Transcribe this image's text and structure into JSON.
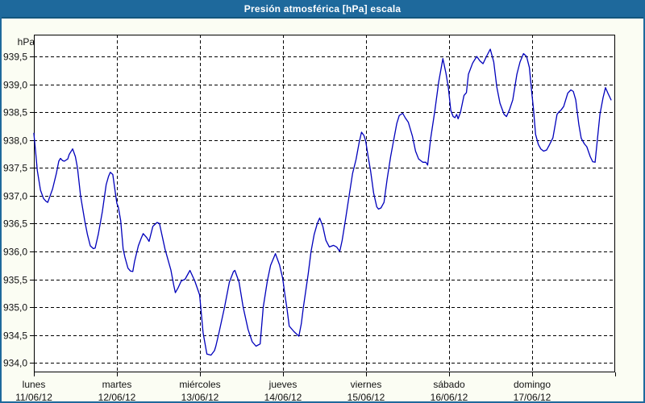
{
  "window": {
    "title": "Presión atmosférica [hPa] escala"
  },
  "colors": {
    "titlebar_blue": "#1e699c",
    "frame_blue": "#1e699c",
    "page_background": "#fbfdf3",
    "plot_background": "#ffffff",
    "grid_color": "#000000",
    "line_color": "#0000bb",
    "label_color": "#111111"
  },
  "chart_data": {
    "type": "line",
    "title": "Presión atmosférica [hPa] escala",
    "xlabel": "",
    "ylabel": "hPa",
    "grid": "dashed",
    "legend": "none",
    "xlim_hours": [
      0,
      168
    ],
    "ylim": [
      933.83,
      939.89
    ],
    "y_ticks": [
      {
        "value": 939.5,
        "label": "939,5"
      },
      {
        "value": 939.0,
        "label": "939,0"
      },
      {
        "value": 938.5,
        "label": "938,5"
      },
      {
        "value": 938.0,
        "label": "938,0"
      },
      {
        "value": 937.5,
        "label": "937,5"
      },
      {
        "value": 937.0,
        "label": "937,0"
      },
      {
        "value": 936.5,
        "label": "936,5"
      },
      {
        "value": 936.0,
        "label": "936,0"
      },
      {
        "value": 935.5,
        "label": "935,5"
      },
      {
        "value": 935.0,
        "label": "935,0"
      },
      {
        "value": 934.5,
        "label": "934,5"
      },
      {
        "value": 934.0,
        "label": "934,0"
      }
    ],
    "x_days": [
      {
        "name": "lunes",
        "date": "11/06/12",
        "start_hour": 0
      },
      {
        "name": "martes",
        "date": "12/06/12",
        "start_hour": 24
      },
      {
        "name": "miércoles",
        "date": "13/06/12",
        "start_hour": 48
      },
      {
        "name": "jueves",
        "date": "14/06/12",
        "start_hour": 72
      },
      {
        "name": "viernes",
        "date": "15/06/12",
        "start_hour": 96
      },
      {
        "name": "sábado",
        "date": "16/06/12",
        "start_hour": 120
      },
      {
        "name": "domingo",
        "date": "17/06/12",
        "start_hour": 144
      }
    ],
    "series": [
      {
        "name": "Presión atmosférica [hPa]",
        "color": "#0000bb",
        "points": [
          [
            0,
            938.12
          ],
          [
            0.5,
            937.8
          ],
          [
            1,
            937.45
          ],
          [
            1.9,
            937.1
          ],
          [
            2.8,
            936.95
          ],
          [
            3.5,
            936.9
          ],
          [
            4,
            936.88
          ],
          [
            4.7,
            937.0
          ],
          [
            5.4,
            937.12
          ],
          [
            6.5,
            937.4
          ],
          [
            7.2,
            937.62
          ],
          [
            7.7,
            937.67
          ],
          [
            8.3,
            937.63
          ],
          [
            8.8,
            937.62
          ],
          [
            9.8,
            937.66
          ],
          [
            10.2,
            937.74
          ],
          [
            11.2,
            937.84
          ],
          [
            12,
            937.7
          ],
          [
            12.6,
            937.5
          ],
          [
            13.5,
            937.0
          ],
          [
            14.7,
            936.55
          ],
          [
            15.5,
            936.3
          ],
          [
            16.3,
            936.1
          ],
          [
            17.2,
            936.05
          ],
          [
            17.7,
            936.06
          ],
          [
            18.6,
            936.3
          ],
          [
            19.8,
            936.72
          ],
          [
            20.9,
            937.2
          ],
          [
            21.6,
            937.35
          ],
          [
            22.1,
            937.42
          ],
          [
            22.8,
            937.38
          ],
          [
            23.4,
            937.12
          ],
          [
            24,
            936.86
          ],
          [
            24.4,
            936.8
          ],
          [
            25.1,
            936.55
          ],
          [
            25.8,
            936.05
          ],
          [
            26.3,
            935.9
          ],
          [
            27.2,
            935.7
          ],
          [
            27.9,
            935.65
          ],
          [
            28.6,
            935.64
          ],
          [
            29.1,
            935.82
          ],
          [
            30.2,
            936.1
          ],
          [
            31.1,
            936.25
          ],
          [
            31.6,
            936.32
          ],
          [
            32.6,
            936.25
          ],
          [
            33.3,
            936.18
          ],
          [
            34.4,
            936.45
          ],
          [
            35.6,
            936.52
          ],
          [
            36.3,
            936.5
          ],
          [
            37.9,
            936.04
          ],
          [
            39.6,
            935.67
          ],
          [
            40.4,
            935.4
          ],
          [
            40.9,
            935.26
          ],
          [
            41.7,
            935.35
          ],
          [
            42.6,
            935.47
          ],
          [
            43.7,
            935.5
          ],
          [
            45.1,
            935.66
          ],
          [
            46.5,
            935.47
          ],
          [
            47.9,
            935.22
          ],
          [
            48.9,
            934.54
          ],
          [
            50,
            934.16
          ],
          [
            51.2,
            934.14
          ],
          [
            52.2,
            934.22
          ],
          [
            52.6,
            934.3
          ],
          [
            53.5,
            934.54
          ],
          [
            55.1,
            935.0
          ],
          [
            56.5,
            935.45
          ],
          [
            57.7,
            935.64
          ],
          [
            58.1,
            935.66
          ],
          [
            59.3,
            935.45
          ],
          [
            60.5,
            935.0
          ],
          [
            61.9,
            934.6
          ],
          [
            63.1,
            934.38
          ],
          [
            64.2,
            934.3
          ],
          [
            65.4,
            934.34
          ],
          [
            66.3,
            935.0
          ],
          [
            67.5,
            935.48
          ],
          [
            68.4,
            935.75
          ],
          [
            69.8,
            935.96
          ],
          [
            71,
            935.76
          ],
          [
            71.9,
            935.52
          ],
          [
            72.6,
            935.2
          ],
          [
            73.1,
            935.0
          ],
          [
            73.8,
            934.66
          ],
          [
            75.2,
            934.56
          ],
          [
            76.6,
            934.48
          ],
          [
            77.3,
            934.7
          ],
          [
            77.9,
            935.0
          ],
          [
            78.6,
            935.3
          ],
          [
            79.3,
            935.6
          ],
          [
            80.1,
            936.0
          ],
          [
            81,
            936.3
          ],
          [
            81.9,
            936.5
          ],
          [
            82.6,
            936.6
          ],
          [
            83.5,
            936.45
          ],
          [
            84.4,
            936.2
          ],
          [
            85.4,
            936.08
          ],
          [
            86.6,
            936.11
          ],
          [
            87.5,
            936.08
          ],
          [
            88.4,
            936.0
          ],
          [
            89.1,
            936.2
          ],
          [
            90,
            936.55
          ],
          [
            91,
            936.95
          ],
          [
            92.1,
            937.4
          ],
          [
            93.1,
            937.65
          ],
          [
            94,
            937.95
          ],
          [
            94.7,
            938.14
          ],
          [
            95.4,
            938.08
          ],
          [
            95.9,
            937.98
          ],
          [
            96.6,
            937.7
          ],
          [
            97.3,
            937.45
          ],
          [
            98.2,
            937.05
          ],
          [
            99.1,
            936.8
          ],
          [
            99.6,
            936.76
          ],
          [
            100.3,
            936.78
          ],
          [
            101.2,
            936.88
          ],
          [
            102.1,
            937.3
          ],
          [
            103.1,
            937.7
          ],
          [
            104,
            938.0
          ],
          [
            104.9,
            938.3
          ],
          [
            105.6,
            938.44
          ],
          [
            106.6,
            938.48
          ],
          [
            107.3,
            938.4
          ],
          [
            108.2,
            938.32
          ],
          [
            109.4,
            938.07
          ],
          [
            110.3,
            937.8
          ],
          [
            111.2,
            937.66
          ],
          [
            112.4,
            937.6
          ],
          [
            113.3,
            937.6
          ],
          [
            113.8,
            937.55
          ],
          [
            114.7,
            938.04
          ],
          [
            115.9,
            938.53
          ],
          [
            117,
            939.04
          ],
          [
            118.2,
            939.46
          ],
          [
            119.1,
            939.2
          ],
          [
            119.8,
            938.94
          ],
          [
            120.5,
            938.53
          ],
          [
            121.2,
            938.42
          ],
          [
            121.7,
            938.4
          ],
          [
            122.2,
            938.46
          ],
          [
            122.6,
            938.38
          ],
          [
            123.3,
            938.5
          ],
          [
            124.3,
            938.8
          ],
          [
            125,
            938.85
          ],
          [
            125.6,
            939.18
          ],
          [
            126.8,
            939.38
          ],
          [
            128,
            939.5
          ],
          [
            128.9,
            939.42
          ],
          [
            129.8,
            939.37
          ],
          [
            130.8,
            939.5
          ],
          [
            131.9,
            939.63
          ],
          [
            132.9,
            939.4
          ],
          [
            133.8,
            938.95
          ],
          [
            134.7,
            938.66
          ],
          [
            135.9,
            938.46
          ],
          [
            136.6,
            938.42
          ],
          [
            137.5,
            938.55
          ],
          [
            138.4,
            938.72
          ],
          [
            139.6,
            939.18
          ],
          [
            140.5,
            939.4
          ],
          [
            141.5,
            939.55
          ],
          [
            142.4,
            939.5
          ],
          [
            143.2,
            939.3
          ],
          [
            143.8,
            938.92
          ],
          [
            144.4,
            938.55
          ],
          [
            145,
            938.1
          ],
          [
            145.8,
            937.92
          ],
          [
            146.5,
            937.84
          ],
          [
            147.3,
            937.8
          ],
          [
            148.2,
            937.82
          ],
          [
            148.9,
            937.9
          ],
          [
            150,
            938.04
          ],
          [
            151.2,
            938.46
          ],
          [
            151.7,
            938.5
          ],
          [
            152.4,
            938.54
          ],
          [
            153.1,
            938.6
          ],
          [
            154.3,
            938.84
          ],
          [
            155.2,
            938.9
          ],
          [
            155.9,
            938.87
          ],
          [
            156.6,
            938.72
          ],
          [
            157.5,
            938.28
          ],
          [
            158.2,
            938.03
          ],
          [
            159.1,
            937.93
          ],
          [
            159.8,
            937.88
          ],
          [
            160.8,
            937.7
          ],
          [
            161.5,
            937.61
          ],
          [
            162.2,
            937.6
          ],
          [
            162.9,
            938.03
          ],
          [
            163.6,
            938.46
          ],
          [
            164.5,
            938.76
          ],
          [
            165.2,
            938.94
          ],
          [
            165.9,
            938.84
          ],
          [
            166.8,
            938.72
          ]
        ]
      }
    ]
  }
}
